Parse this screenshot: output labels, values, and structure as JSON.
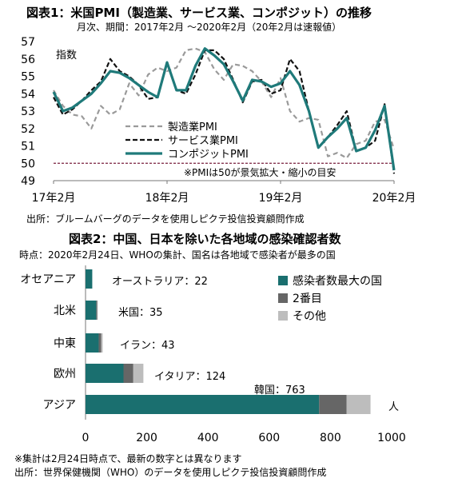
{
  "chart_data": [
    {
      "type": "line",
      "title": "図表1：米国PMI（製造業、サービス業、コンポジット）の推移",
      "subtitle": "月次、期間：2017年2月 ～2020年2月（20年2月は速報値）",
      "ylabel": "指数",
      "ylim": [
        49,
        57
      ],
      "yticks": [
        "49",
        "50",
        "51",
        "52",
        "53",
        "54",
        "55",
        "56",
        "57"
      ],
      "x_ticks": [
        "17年2月",
        "18年2月",
        "19年2月",
        "20年2月"
      ],
      "x_tick_index": [
        0,
        12,
        24,
        36
      ],
      "reference_line": 50,
      "note": "※PMIは50が景気拡大・縮小の目安",
      "source": "出所：ブルームバーグのデータを使用しピクテ投信投資顧問作成",
      "legend_position": "center",
      "colors": {
        "manufacturing": "#9a9a9a",
        "services": "#111111",
        "composite": "#1f7a7a",
        "reference": "#7a1f3d"
      },
      "series": [
        {
          "name": "製造業PMI",
          "style": "dashed-gray",
          "values": [
            54.2,
            53.3,
            52.8,
            52.7,
            52.0,
            53.3,
            52.8,
            53.1,
            54.6,
            53.9,
            55.1,
            55.5,
            55.3,
            55.5,
            56.5,
            56.6,
            56.4,
            55.4,
            54.8,
            55.7,
            55.6,
            55.3,
            54.7,
            53.8,
            54.9,
            53.0,
            52.4,
            52.6,
            52.5,
            50.4,
            50.6,
            50.3,
            51.1,
            51.3,
            52.4,
            52.5,
            50.8
          ]
        },
        {
          "name": "サービス業PMI",
          "style": "dashed-black",
          "values": [
            53.8,
            52.8,
            53.1,
            53.6,
            54.2,
            54.7,
            56.0,
            55.3,
            55.0,
            54.5,
            53.7,
            53.8,
            55.8,
            54.2,
            54.0,
            55.1,
            56.5,
            56.5,
            56.0,
            54.8,
            53.5,
            54.7,
            54.8,
            54.0,
            54.2,
            56.0,
            55.3,
            53.0,
            50.9,
            51.5,
            52.2,
            53.0,
            50.7,
            50.9,
            51.3,
            53.4,
            49.4
          ]
        },
        {
          "name": "コンポジットPMI",
          "style": "solid-teal",
          "values": [
            54.1,
            53.0,
            53.2,
            53.6,
            54.0,
            54.6,
            55.3,
            55.2,
            54.9,
            54.5,
            54.1,
            53.8,
            55.8,
            54.2,
            54.2,
            55.6,
            56.6,
            56.2,
            55.7,
            54.7,
            53.6,
            54.8,
            54.7,
            54.4,
            54.6,
            55.3,
            54.5,
            53.0,
            50.9,
            51.5,
            52.0,
            52.6,
            50.7,
            50.9,
            51.9,
            53.3,
            49.6
          ]
        }
      ]
    },
    {
      "type": "bar",
      "orientation": "horizontal",
      "stacked": true,
      "title": "図表2：中国、日本を除いた各地域の感染確認者数",
      "subtitle": "時点：2020年2月24日、WHOの集計、国名は各地域で感染者が最多の国",
      "categories": [
        "オセアニア",
        "北米",
        "中東",
        "欧州",
        "アジア"
      ],
      "xlim": [
        0,
        1000
      ],
      "xticks": [
        "0",
        "200",
        "400",
        "600",
        "800",
        "1000"
      ],
      "unit": "人",
      "legend_position": "right",
      "colors": {
        "first": "#1a6f6f",
        "second": "#666666",
        "other": "#bdbdbd"
      },
      "series": [
        {
          "name": "感染者数最大の国",
          "values": [
            22,
            35,
            43,
            124,
            763
          ]
        },
        {
          "name": "2番目",
          "values": [
            0,
            3,
            8,
            32,
            90
          ]
        },
        {
          "name": "その他",
          "values": [
            0,
            2,
            5,
            33,
            78
          ]
        }
      ],
      "labels": [
        "オーストラリア：22",
        "米国：35",
        "イラン：43",
        "イタリア：124",
        "韓国：763"
      ],
      "notes": [
        "※集計は2月24日時点で、最新の数字とは異なります",
        "出所：世界保健機関（WHO）のデータを使用しピクテ投信投資顧問作成"
      ]
    }
  ]
}
